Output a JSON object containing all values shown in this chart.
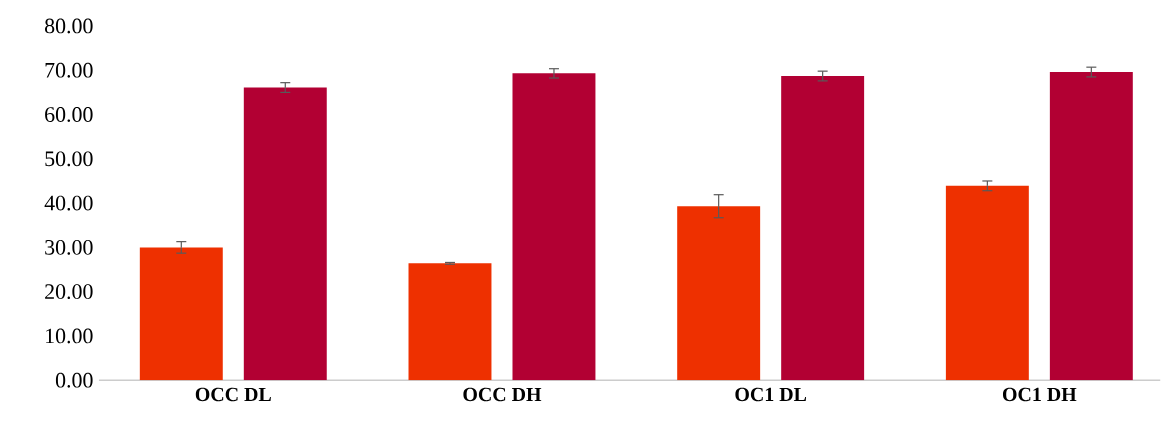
{
  "chart_data": {
    "type": "bar",
    "categories": [
      "OCC DL",
      "OCC DH",
      "OC1 DL",
      "OC1 DH"
    ],
    "series": [
      {
        "color": "#ee3000",
        "values": [
          30.0,
          26.4,
          39.3,
          43.9
        ],
        "errors": [
          1.3,
          0.2,
          2.6,
          1.1
        ]
      },
      {
        "color": "#b20033",
        "values": [
          66.1,
          69.3,
          68.7,
          69.6
        ],
        "errors": [
          1.1,
          1.05,
          1.1,
          1.1
        ]
      }
    ],
    "ylim": [
      0,
      80
    ],
    "yticks": [
      {
        "value": 0,
        "label": "0.00"
      },
      {
        "value": 10,
        "label": "10.00"
      },
      {
        "value": 20,
        "label": "20.00"
      },
      {
        "value": 30,
        "label": "30.00"
      },
      {
        "value": 40,
        "label": "40.00"
      },
      {
        "value": 50,
        "label": "50.00"
      },
      {
        "value": 60,
        "label": "60.00"
      },
      {
        "value": 70,
        "label": "70.00"
      },
      {
        "value": 80,
        "label": "80.00"
      }
    ],
    "grid": false
  }
}
